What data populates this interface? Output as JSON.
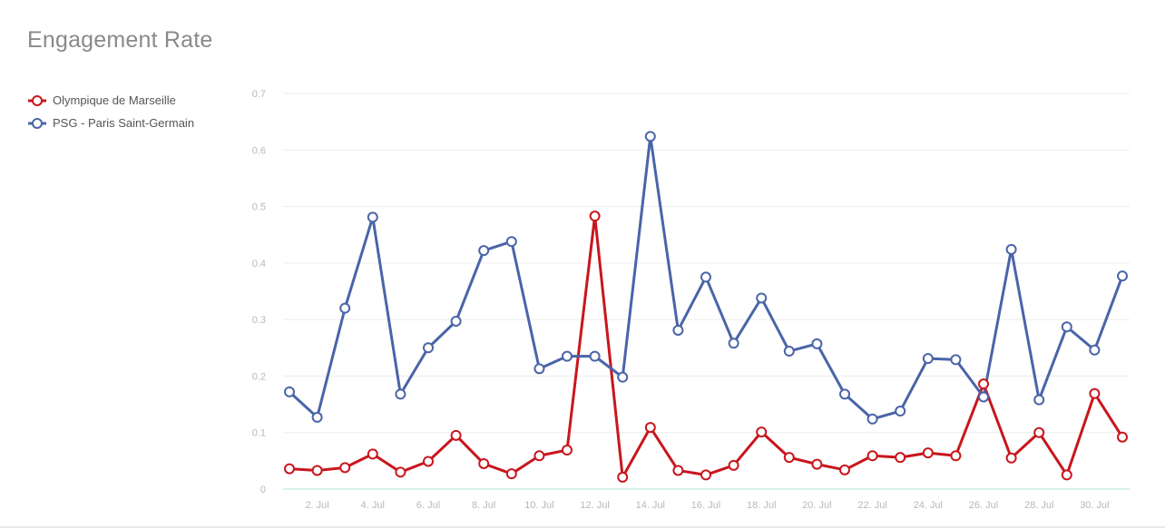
{
  "chart_data": {
    "type": "line",
    "title": "Engagement Rate",
    "xlabel": "",
    "ylabel": "",
    "ylim": [
      0,
      0.7
    ],
    "y_ticks": [
      0,
      0.1,
      0.2,
      0.3,
      0.4,
      0.5,
      0.6,
      0.7
    ],
    "x_ticks": [
      "2. Jul",
      "4. Jul",
      "6. Jul",
      "8. Jul",
      "10. Jul",
      "12. Jul",
      "14. Jul",
      "16. Jul",
      "18. Jul",
      "20. Jul",
      "22. Jul",
      "24. Jul",
      "26. Jul",
      "28. Jul",
      "30. Jul"
    ],
    "x_days": [
      1,
      2,
      3,
      4,
      5,
      6,
      7,
      8,
      9,
      10,
      11,
      12,
      13,
      14,
      15,
      16,
      17,
      18,
      19,
      20,
      21,
      22,
      23,
      24,
      25,
      26,
      27,
      28,
      29,
      30,
      31
    ],
    "legend_position": "top-left",
    "grid": true,
    "series": [
      {
        "name": "Olympique de Marseille",
        "color": "#c8161d",
        "values": [
          0.036,
          0.033,
          0.038,
          0.062,
          0.03,
          0.049,
          0.095,
          0.045,
          0.027,
          0.059,
          0.069,
          0.483,
          0.021,
          0.109,
          0.033,
          0.025,
          0.042,
          0.101,
          0.056,
          0.044,
          0.034,
          0.059,
          0.056,
          0.064,
          0.059,
          0.186,
          0.055,
          0.1,
          0.025,
          0.169,
          0.092
        ]
      },
      {
        "name": "PSG - Paris Saint-Germain",
        "color": "#4a64a8",
        "values": [
          0.172,
          0.127,
          0.32,
          0.481,
          0.168,
          0.25,
          0.297,
          0.422,
          0.438,
          0.213,
          0.235,
          0.235,
          0.198,
          0.624,
          0.281,
          0.375,
          0.258,
          0.338,
          0.244,
          0.257,
          0.168,
          0.124,
          0.138,
          0.231,
          0.229,
          0.163,
          0.424,
          0.158,
          0.287,
          0.246,
          0.377
        ]
      }
    ]
  }
}
